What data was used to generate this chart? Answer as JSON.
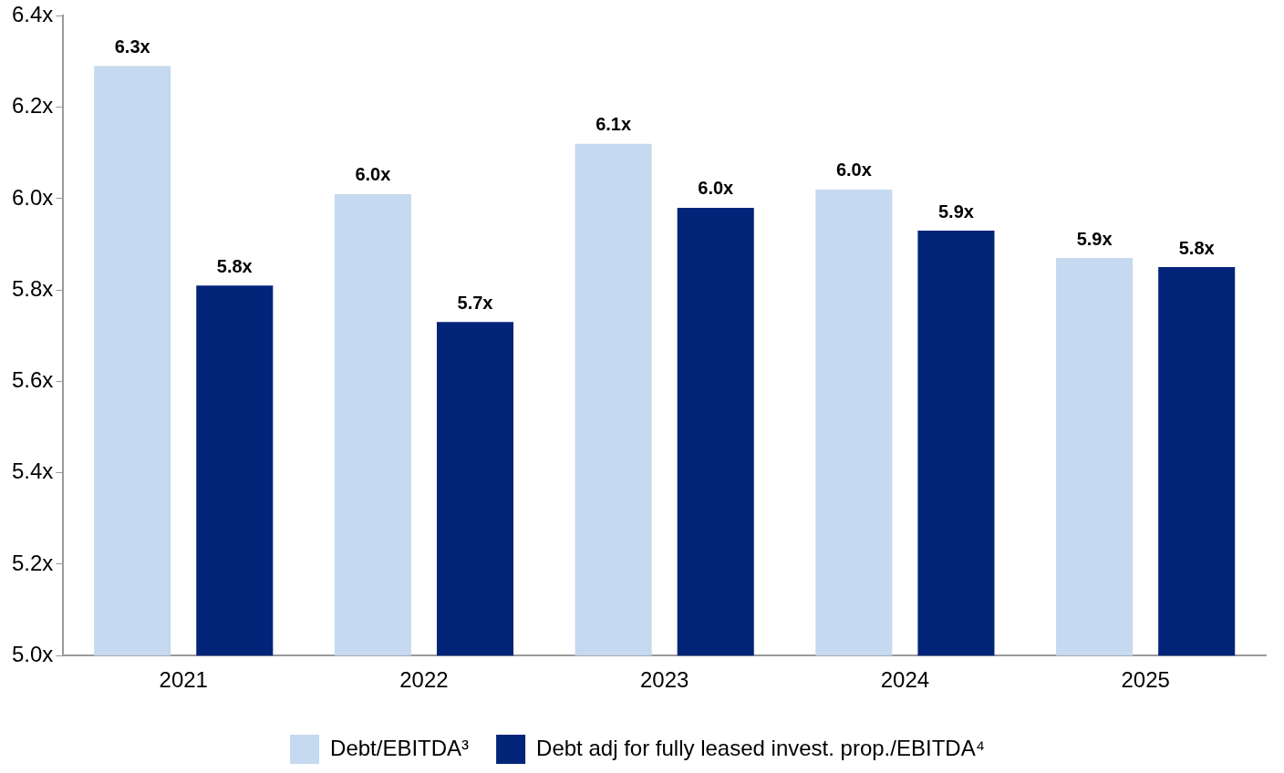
{
  "chart_data": {
    "type": "bar",
    "categories": [
      "2021",
      "2022",
      "2023",
      "2024",
      "2025"
    ],
    "series": [
      {
        "name": "Debt/EBITDA³",
        "color": "#c5d9f0",
        "values": [
          6.29,
          6.01,
          6.12,
          6.02,
          5.87
        ],
        "value_labels": [
          "6.3x",
          "6.0x",
          "6.1x",
          "6.0x",
          "5.9x"
        ]
      },
      {
        "name": "Debt adj for fully leased invest. prop./EBITDA⁴",
        "color": "#022479",
        "values": [
          5.81,
          5.73,
          5.98,
          5.93,
          5.85
        ],
        "value_labels": [
          "5.8x",
          "5.7x",
          "6.0x",
          "5.9x",
          "5.8x"
        ]
      }
    ],
    "ylim": [
      5.0,
      6.4
    ],
    "yticks": [
      {
        "value": 5.0,
        "label": "5.0x"
      },
      {
        "value": 5.2,
        "label": "5.2x"
      },
      {
        "value": 5.4,
        "label": "5.4x"
      },
      {
        "value": 5.6,
        "label": "5.6x"
      },
      {
        "value": 5.8,
        "label": "5.8x"
      },
      {
        "value": 6.0,
        "label": "6.0x"
      },
      {
        "value": 6.2,
        "label": "6.2x"
      },
      {
        "value": 6.4,
        "label": "6.4x"
      }
    ],
    "grid": false,
    "legend": "bottom"
  }
}
